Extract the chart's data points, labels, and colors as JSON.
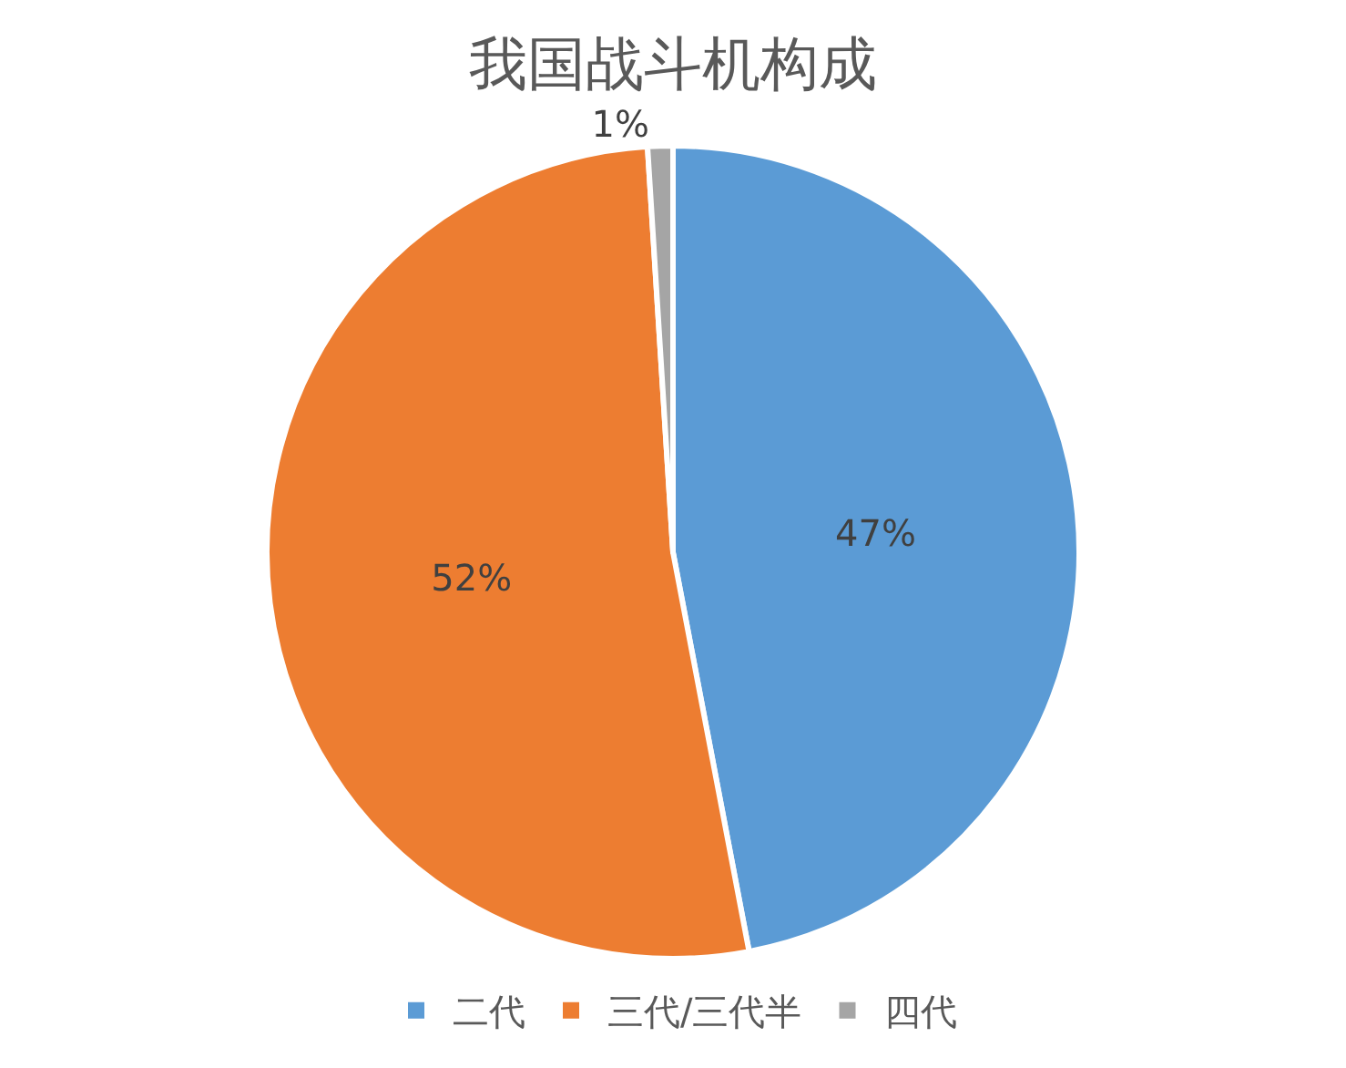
{
  "chart_data": {
    "type": "pie",
    "title": "我国战斗机构成",
    "categories": [
      "二代",
      "三代/三代半",
      "四代"
    ],
    "values": [
      47,
      52,
      1
    ],
    "colors": [
      "#5b9bd5",
      "#ed7d31",
      "#a5a5a5"
    ],
    "value_labels": [
      "47%",
      "52%",
      "1%"
    ],
    "legend": "bottom"
  }
}
